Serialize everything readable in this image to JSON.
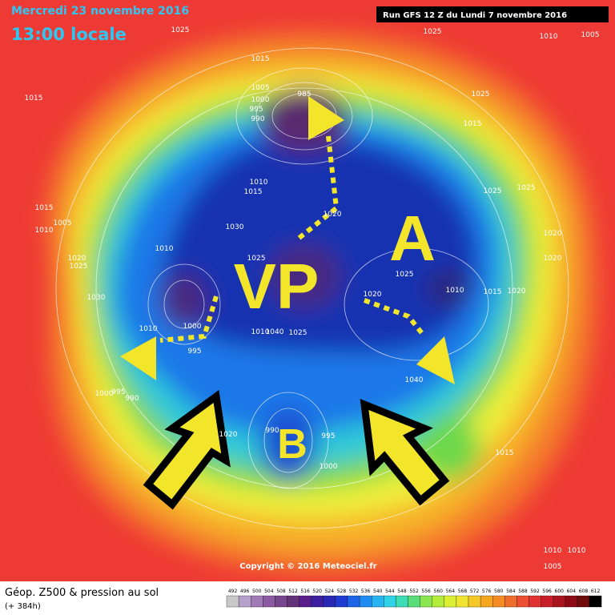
{
  "header": {
    "date": "Mercredi 23 novembre 2016",
    "time": "13:00 locale",
    "run": "Run GFS 12 Z du Lundi 7 novembre 2016"
  },
  "map": {
    "annotations": [
      "VP",
      "A",
      "B"
    ],
    "pressure_labels": [
      "1025",
      "1025",
      "1010",
      "1005",
      "1015",
      "1015",
      "1005",
      "1000",
      "995",
      "990",
      "985",
      "1025",
      "1015",
      "1025",
      "1025",
      "1010",
      "1015",
      "1020",
      "1015",
      "1005",
      "1010",
      "1030",
      "1010",
      "1020",
      "1025",
      "1025",
      "1020",
      "1020",
      "1030",
      "1025",
      "1020",
      "1010",
      "1015",
      "1020",
      "1010",
      "1000",
      "995",
      "1010",
      "1040",
      "1025",
      "1040",
      "1000",
      "995",
      "990",
      "1020",
      "990",
      "995",
      "1000",
      "1015",
      "1010",
      "1010",
      "1005"
    ],
    "copyright": "Copyright © 2016 Meteociel.fr"
  },
  "footer": {
    "title": "Géop. Z500 & pression au sol",
    "subtitle": "(+ 384h)",
    "scale": [
      492,
      496,
      500,
      504,
      508,
      512,
      516,
      520,
      524,
      528,
      532,
      536,
      540,
      544,
      548,
      552,
      556,
      560,
      564,
      568,
      572,
      576,
      580,
      584,
      588,
      592,
      596,
      600,
      604,
      608,
      612
    ]
  }
}
